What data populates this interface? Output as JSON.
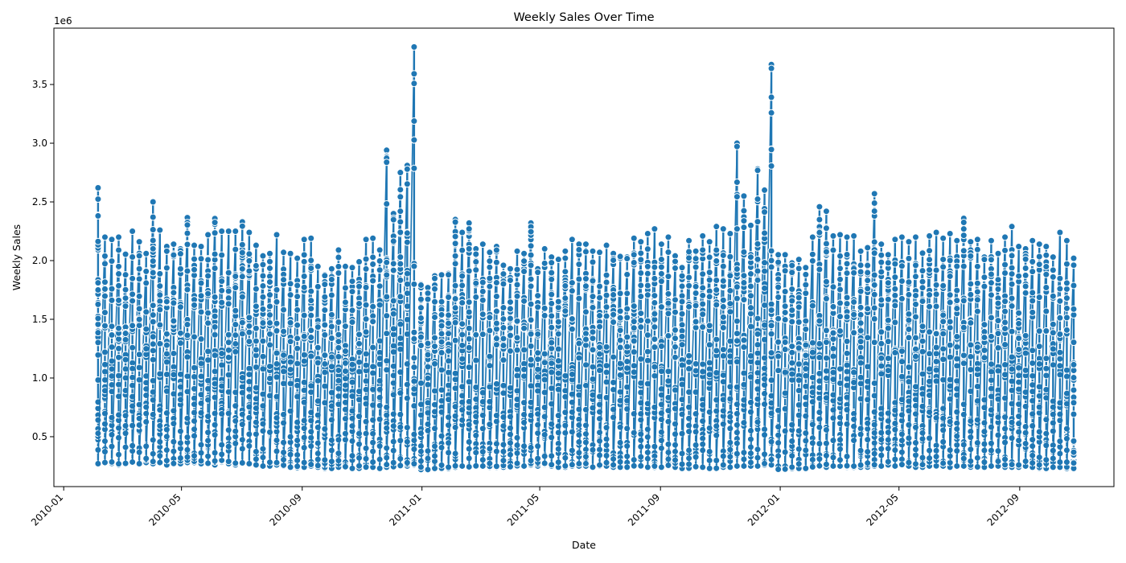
{
  "chart_data": {
    "type": "line",
    "title": "Weekly Sales Over Time",
    "xlabel": "Date",
    "ylabel": "Weekly Sales",
    "y_offset_label": "1e6",
    "x_axis": "date",
    "xlim": [
      "2009-12-22",
      "2012-12-06"
    ],
    "ylim": [
      0.075,
      3.98
    ],
    "y_multiplier": 1000000,
    "x_ticks": [
      "2010-01-01",
      "2010-05-01",
      "2010-09-01",
      "2011-01-01",
      "2011-05-01",
      "2011-09-01",
      "2012-01-01",
      "2012-05-01",
      "2012-09-01"
    ],
    "x_tick_labels": [
      "2010-01",
      "2010-05",
      "2010-09",
      "2011-01",
      "2011-05",
      "2011-09",
      "2012-01",
      "2012-05",
      "2012-09"
    ],
    "y_ticks": [
      0.5,
      1.0,
      1.5,
      2.0,
      2.5,
      3.0,
      3.5
    ],
    "y_tick_labels": [
      "0.5",
      "1.0",
      "1.5",
      "2.0",
      "2.5",
      "3.0",
      "3.5"
    ],
    "grid": false,
    "legend": "none",
    "marker": "circle",
    "color": "#1f77b4",
    "description": "Many stores per week; each weekly column spans roughly 0.25e6 to the weekly maximum.",
    "series": [
      {
        "x": [
          "2010-02-05",
          "2010-02-12",
          "2010-02-19",
          "2010-02-26",
          "2010-03-05",
          "2010-03-12",
          "2010-03-19",
          "2010-03-26",
          "2010-04-02",
          "2010-04-09",
          "2010-04-16",
          "2010-04-23",
          "2010-04-30",
          "2010-05-07",
          "2010-05-14",
          "2010-05-21",
          "2010-05-28",
          "2010-06-04",
          "2010-06-11",
          "2010-06-18",
          "2010-06-25",
          "2010-07-02",
          "2010-07-09",
          "2010-07-16",
          "2010-07-23",
          "2010-07-30",
          "2010-08-06",
          "2010-08-13",
          "2010-08-20",
          "2010-08-27",
          "2010-09-03",
          "2010-09-10",
          "2010-09-17",
          "2010-09-24",
          "2010-10-01",
          "2010-10-08",
          "2010-10-15",
          "2010-10-22",
          "2010-10-29",
          "2010-11-05",
          "2010-11-12",
          "2010-11-19",
          "2010-11-26",
          "2010-12-03",
          "2010-12-10",
          "2010-12-17",
          "2010-12-24",
          "2010-12-31",
          "2011-01-07",
          "2011-01-14",
          "2011-01-21",
          "2011-01-28",
          "2011-02-04",
          "2011-02-11",
          "2011-02-18",
          "2011-02-25",
          "2011-03-04",
          "2011-03-11",
          "2011-03-18",
          "2011-03-25",
          "2011-04-01",
          "2011-04-08",
          "2011-04-15",
          "2011-04-22",
          "2011-04-29",
          "2011-05-06",
          "2011-05-13",
          "2011-05-20",
          "2011-05-27",
          "2011-06-03",
          "2011-06-10",
          "2011-06-17",
          "2011-06-24",
          "2011-07-01",
          "2011-07-08",
          "2011-07-15",
          "2011-07-22",
          "2011-07-29",
          "2011-08-05",
          "2011-08-12",
          "2011-08-19",
          "2011-08-26",
          "2011-09-02",
          "2011-09-09",
          "2011-09-16",
          "2011-09-23",
          "2011-09-30",
          "2011-10-07",
          "2011-10-14",
          "2011-10-21",
          "2011-10-28",
          "2011-11-04",
          "2011-11-11",
          "2011-11-18",
          "2011-11-25",
          "2011-12-02",
          "2011-12-09",
          "2011-12-16",
          "2011-12-23",
          "2011-12-30",
          "2012-01-06",
          "2012-01-13",
          "2012-01-20",
          "2012-01-27",
          "2012-02-03",
          "2012-02-10",
          "2012-02-17",
          "2012-02-24",
          "2012-03-02",
          "2012-03-09",
          "2012-03-16",
          "2012-03-23",
          "2012-03-30",
          "2012-04-06",
          "2012-04-13",
          "2012-04-20",
          "2012-04-27",
          "2012-05-04",
          "2012-05-11",
          "2012-05-18",
          "2012-05-25",
          "2012-06-01",
          "2012-06-08",
          "2012-06-15",
          "2012-06-22",
          "2012-06-29",
          "2012-07-06",
          "2012-07-13",
          "2012-07-20",
          "2012-07-27",
          "2012-08-03",
          "2012-08-10",
          "2012-08-17",
          "2012-08-24",
          "2012-08-31",
          "2012-09-07",
          "2012-09-14",
          "2012-09-21",
          "2012-09-28",
          "2012-10-05",
          "2012-10-12",
          "2012-10-19",
          "2012-10-26"
        ],
        "max": [
          2.62,
          2.2,
          2.18,
          2.2,
          2.06,
          2.25,
          2.16,
          2.06,
          2.5,
          2.26,
          2.12,
          2.14,
          2.1,
          2.37,
          2.13,
          2.12,
          2.22,
          2.36,
          2.25,
          2.25,
          2.25,
          2.33,
          2.24,
          2.13,
          2.04,
          2.06,
          2.22,
          2.07,
          2.06,
          2.02,
          2.18,
          2.19,
          1.95,
          1.88,
          1.93,
          2.09,
          1.95,
          1.94,
          1.99,
          2.18,
          2.19,
          2.09,
          2.94,
          2.4,
          2.75,
          2.81,
          3.82,
          1.8,
          1.77,
          1.87,
          1.88,
          1.89,
          2.35,
          2.24,
          2.32,
          2.1,
          2.14,
          2.07,
          2.12,
          1.96,
          1.93,
          2.08,
          2.06,
          2.32,
          1.93,
          2.1,
          2.03,
          2.01,
          2.08,
          2.18,
          2.14,
          2.14,
          2.08,
          2.07,
          2.13,
          2.06,
          2.04,
          2.03,
          2.19,
          2.16,
          2.23,
          2.27,
          2.14,
          2.2,
          2.04,
          1.94,
          2.17,
          2.08,
          2.21,
          2.16,
          2.29,
          2.27,
          2.23,
          3.0,
          2.55,
          2.3,
          2.78,
          2.6,
          3.67,
          2.05,
          2.05,
          1.98,
          2.01,
          1.94,
          2.2,
          2.46,
          2.42,
          2.21,
          2.22,
          2.2,
          2.21,
          2.08,
          2.11,
          2.57,
          2.14,
          2.05,
          2.18,
          2.2,
          2.16,
          2.2,
          2.07,
          2.21,
          2.24,
          2.19,
          2.23,
          2.17,
          2.36,
          2.16,
          2.18,
          2.03,
          2.17,
          2.06,
          2.2,
          2.29,
          2.12,
          2.1,
          2.17,
          2.14,
          2.12,
          2.03,
          2.24,
          2.17,
          2.02,
          2.15
        ],
        "min": [
          0.27,
          0.28,
          0.27,
          0.26,
          0.27,
          0.28,
          0.27,
          0.28,
          0.27,
          0.28,
          0.26,
          0.27,
          0.27,
          0.28,
          0.28,
          0.27,
          0.27,
          0.26,
          0.28,
          0.27,
          0.26,
          0.27,
          0.27,
          0.26,
          0.25,
          0.25,
          0.26,
          0.25,
          0.24,
          0.23,
          0.24,
          0.25,
          0.24,
          0.23,
          0.23,
          0.24,
          0.24,
          0.23,
          0.23,
          0.24,
          0.24,
          0.23,
          0.24,
          0.24,
          0.25,
          0.25,
          0.26,
          0.22,
          0.22,
          0.23,
          0.23,
          0.23,
          0.24,
          0.25,
          0.24,
          0.25,
          0.25,
          0.24,
          0.24,
          0.24,
          0.24,
          0.25,
          0.25,
          0.26,
          0.25,
          0.26,
          0.25,
          0.24,
          0.24,
          0.25,
          0.25,
          0.25,
          0.24,
          0.25,
          0.25,
          0.24,
          0.24,
          0.24,
          0.25,
          0.25,
          0.24,
          0.24,
          0.24,
          0.25,
          0.24,
          0.23,
          0.23,
          0.24,
          0.24,
          0.23,
          0.23,
          0.24,
          0.24,
          0.25,
          0.25,
          0.25,
          0.25,
          0.26,
          0.26,
          0.22,
          0.22,
          0.23,
          0.23,
          0.23,
          0.24,
          0.25,
          0.24,
          0.25,
          0.25,
          0.24,
          0.24,
          0.24,
          0.24,
          0.25,
          0.25,
          0.26,
          0.25,
          0.26,
          0.25,
          0.24,
          0.24,
          0.25,
          0.25,
          0.25,
          0.24,
          0.25,
          0.25,
          0.24,
          0.24,
          0.24,
          0.25,
          0.25,
          0.24,
          0.24,
          0.24,
          0.25,
          0.24,
          0.23,
          0.23,
          0.24,
          0.24,
          0.23,
          0.23,
          0.24,
          0.24
        ]
      }
    ]
  }
}
